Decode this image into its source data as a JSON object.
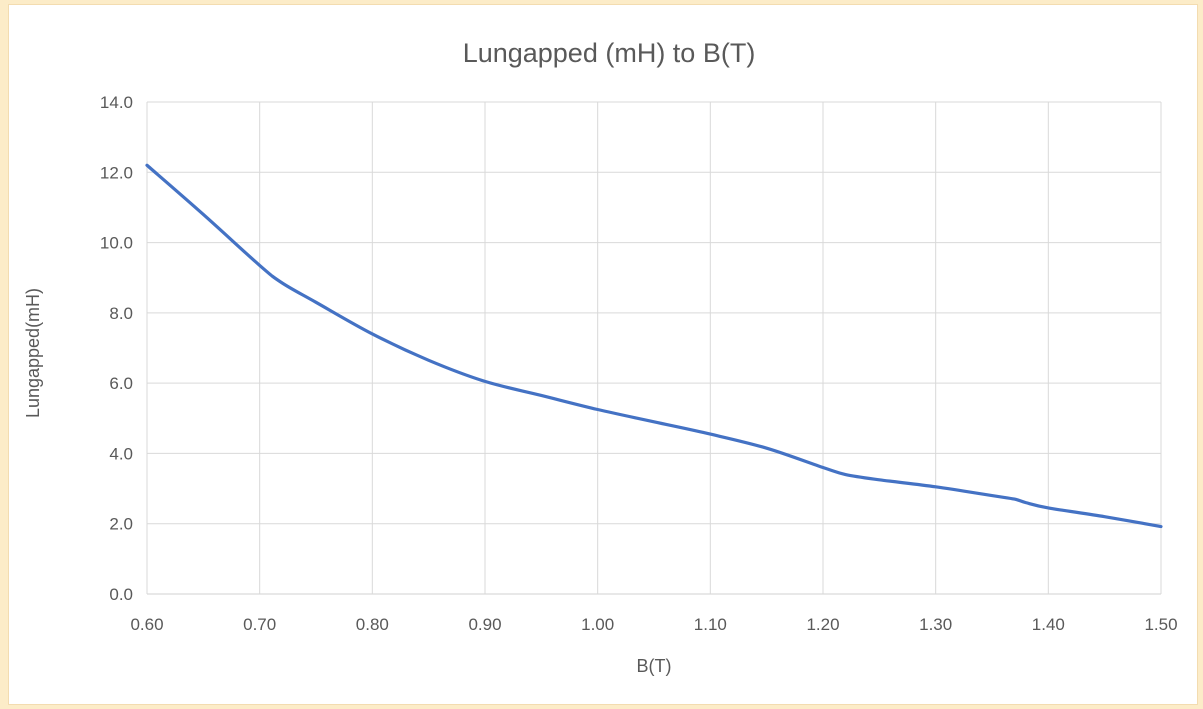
{
  "chart_data": {
    "type": "line",
    "title": "Lungapped (mH) to B(T)",
    "xlabel": "B(T)",
    "ylabel": "Lungapped(mH)",
    "xlim": [
      0.6,
      1.5
    ],
    "ylim": [
      0,
      14
    ],
    "x_ticks": [
      "0.60",
      "0.70",
      "0.80",
      "0.90",
      "1.00",
      "1.10",
      "1.20",
      "1.30",
      "1.40",
      "1.50"
    ],
    "y_ticks": [
      "0.0",
      "2.0",
      "4.0",
      "6.0",
      "8.0",
      "10.0",
      "12.0",
      "14.0"
    ],
    "grid": true,
    "legend": "none",
    "series": [
      {
        "color": "#4472c4",
        "x": [
          0.6,
          0.65,
          0.7,
          0.72,
          0.75,
          0.8,
          0.85,
          0.9,
          0.95,
          1.0,
          1.05,
          1.1,
          1.15,
          1.2,
          1.22,
          1.25,
          1.3,
          1.35,
          1.37,
          1.38,
          1.4,
          1.45,
          1.5
        ],
        "y": [
          12.2,
          10.8,
          9.35,
          8.85,
          8.3,
          7.4,
          6.65,
          6.05,
          5.65,
          5.25,
          4.9,
          4.55,
          4.15,
          3.6,
          3.4,
          3.25,
          3.05,
          2.8,
          2.7,
          2.6,
          2.45,
          2.2,
          1.92
        ]
      }
    ]
  }
}
